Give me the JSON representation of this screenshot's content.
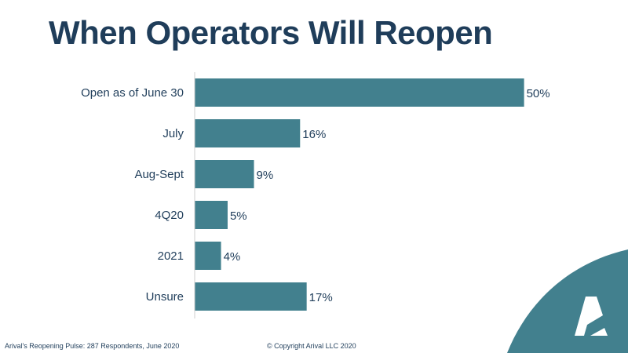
{
  "colors": {
    "bar": "#42808e",
    "text": "#1f3d5a",
    "axis": "#cfcfcf",
    "accent_shape": "#42808e",
    "logo": "#ffffff"
  },
  "logo_icon": "arival-logo-icon",
  "chart_data": {
    "type": "bar",
    "orientation": "horizontal",
    "title": "When Operators Will Reopen",
    "categories": [
      "Open as of June 30",
      "July",
      "Aug-Sept",
      "4Q20",
      "2021",
      "Unsure"
    ],
    "values": [
      50,
      16,
      9,
      5,
      4,
      17
    ],
    "value_labels": [
      "50%",
      "16%",
      "9%",
      "5%",
      "4%",
      "17%"
    ],
    "xlabel": "",
    "ylabel": "",
    "xlim": [
      0,
      51
    ],
    "grid": false,
    "legend": "none"
  },
  "footer": {
    "source": "Arival's Reopening Pulse: 287 Respondents, June 2020",
    "copyright": "© Copyright Arival LLC 2020"
  }
}
